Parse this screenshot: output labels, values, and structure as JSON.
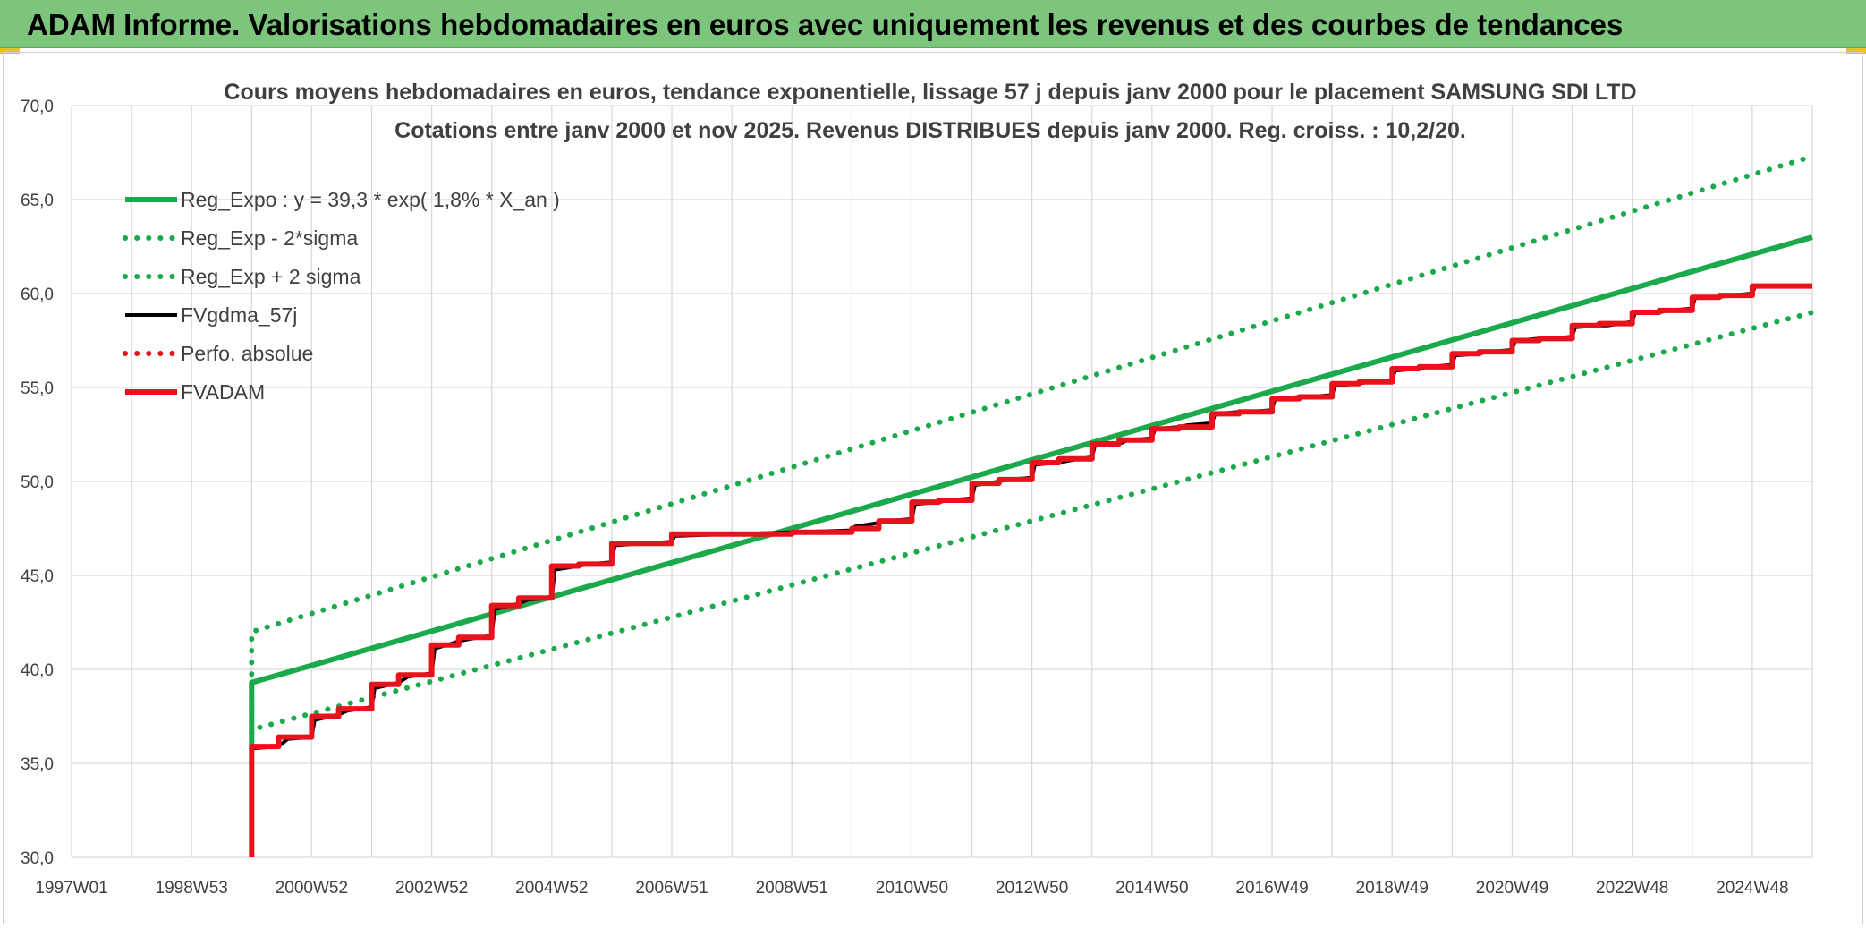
{
  "banner": {
    "title": "ADAM Informe. Valorisations hebdomadaires en euros avec uniquement les revenus et des courbes de tendances"
  },
  "colors": {
    "banner_bg": "#7dc57c",
    "reg_green": "#1aaa4c",
    "fv_black": "#000000",
    "fvadam_red": "#e8121c",
    "grid": "#d9d9d9",
    "text": "#404040"
  },
  "chart_data": {
    "type": "line",
    "title": "Cours moyens hebdomadaires en euros, tendance exponentielle, lissage 57 j depuis janv 2000 pour le placement SAMSUNG SDI LTD",
    "subtitle": "Cotations entre janv 2000 et nov 2025. Revenus DISTRIBUES depuis janv 2000. Reg. croiss. : 10,2/20.",
    "xlabel": "",
    "ylabel": "",
    "x_range": [
      1997.0,
      2026.0
    ],
    "ylim": [
      30,
      70
    ],
    "y_ticks": [
      "30,0",
      "35,0",
      "40,0",
      "45,0",
      "50,0",
      "55,0",
      "60,0",
      "65,0",
      "70,0"
    ],
    "x_ticks": [
      {
        "label": "1997W01",
        "x": 1997.0
      },
      {
        "label": "1998W53",
        "x": 1999.0
      },
      {
        "label": "2000W52",
        "x": 2001.0
      },
      {
        "label": "2002W52",
        "x": 2003.0
      },
      {
        "label": "2004W52",
        "x": 2005.0
      },
      {
        "label": "2006W51",
        "x": 2007.0
      },
      {
        "label": "2008W51",
        "x": 2009.0
      },
      {
        "label": "2010W50",
        "x": 2011.0
      },
      {
        "label": "2012W50",
        "x": 2013.0
      },
      {
        "label": "2014W50",
        "x": 2015.0
      },
      {
        "label": "2016W49",
        "x": 2017.0
      },
      {
        "label": "2018W49",
        "x": 2019.0
      },
      {
        "label": "2020W49",
        "x": 2021.0
      },
      {
        "label": "2022W48",
        "x": 2023.0
      },
      {
        "label": "2024W48",
        "x": 2025.0
      }
    ],
    "grid": true,
    "legend_position": "top-left",
    "series": [
      {
        "name": "Reg_Expo : y = 39,3 * exp( 1,8% *  X_an )",
        "style": "solid",
        "color": "#1aaa4c",
        "x": [
          2000.0,
          2000.0,
          2026.0
        ],
        "y": [
          36.0,
          39.3,
          63.0
        ]
      },
      {
        "name": "Reg_Exp - 2*sigma",
        "style": "dotted",
        "color": "#1aaa4c",
        "x": [
          2000.0,
          2000.0,
          2026.0
        ],
        "y": [
          36.0,
          36.8,
          59.0
        ]
      },
      {
        "name": "Reg_Exp + 2 sigma",
        "style": "dotted",
        "color": "#1aaa4c",
        "x": [
          2000.0,
          2000.0,
          2026.0
        ],
        "y": [
          36.0,
          42.0,
          67.3
        ]
      },
      {
        "name": "FVgdma_57j",
        "style": "solid-thin",
        "color": "#000000",
        "x": [
          2000.0,
          2000.0,
          2000.45,
          2000.6,
          2001.0,
          2001.05,
          2001.45,
          2001.6,
          2002.0,
          2002.05,
          2002.45,
          2002.6,
          2003.0,
          2003.05,
          2003.45,
          2003.6,
          2004.0,
          2004.05,
          2004.45,
          2004.6,
          2005.0,
          2005.05,
          2005.45,
          2005.6,
          2006.0,
          2006.05,
          2007.0,
          2007.05,
          2008.0,
          2008.05,
          2009.0,
          2009.05,
          2010.0,
          2010.05,
          2010.45,
          2010.6,
          2011.0,
          2011.05,
          2011.45,
          2011.6,
          2012.0,
          2012.05,
          2012.45,
          2012.6,
          2013.0,
          2013.05,
          2013.45,
          2013.6,
          2014.0,
          2014.05,
          2014.45,
          2014.6,
          2015.0,
          2015.05,
          2015.45,
          2015.6,
          2016.0,
          2016.05,
          2016.45,
          2016.6,
          2017.0,
          2017.05,
          2017.45,
          2017.6,
          2018.0,
          2018.05,
          2018.45,
          2018.6,
          2019.0,
          2019.05,
          2019.45,
          2019.6,
          2020.0,
          2020.05,
          2020.45,
          2020.6,
          2021.0,
          2021.05,
          2021.45,
          2021.6,
          2022.0,
          2022.05,
          2022.45,
          2022.6,
          2023.0,
          2023.05,
          2023.45,
          2023.6,
          2024.0,
          2024.05,
          2024.45,
          2024.6,
          2025.0,
          2025.05,
          2026.0
        ],
        "y": [
          30.0,
          35.8,
          35.9,
          36.3,
          36.4,
          37.3,
          37.6,
          37.8,
          38.0,
          39.0,
          39.3,
          39.6,
          39.8,
          41.1,
          41.5,
          41.6,
          41.8,
          43.2,
          43.5,
          43.7,
          43.8,
          45.3,
          45.5,
          45.6,
          45.7,
          46.6,
          46.8,
          47.1,
          47.2,
          47.2,
          47.3,
          47.3,
          47.4,
          47.6,
          47.8,
          47.9,
          48.0,
          48.8,
          48.9,
          49.0,
          49.1,
          49.8,
          50.0,
          50.1,
          50.2,
          50.9,
          51.0,
          51.1,
          51.3,
          51.9,
          52.0,
          52.2,
          52.3,
          52.8,
          52.9,
          53.0,
          53.1,
          53.6,
          53.7,
          53.7,
          53.8,
          54.4,
          54.5,
          54.5,
          54.6,
          55.1,
          55.2,
          55.3,
          55.4,
          55.9,
          56.0,
          56.1,
          56.2,
          56.7,
          56.8,
          56.9,
          57.0,
          57.5,
          57.6,
          57.6,
          57.7,
          58.2,
          58.3,
          58.3,
          58.5,
          59.0,
          59.0,
          59.1,
          59.2,
          59.8,
          59.8,
          59.9,
          60.0,
          60.4,
          60.4
        ]
      },
      {
        "name": "Perfo. absolue",
        "style": "dotted",
        "color": "#e8121c",
        "x": [],
        "y": []
      },
      {
        "name": "FVADAM",
        "style": "solid-thick",
        "color": "#e8121c",
        "x": [
          2000.0,
          2000.0,
          2000.45,
          2000.45,
          2001.0,
          2001.0,
          2001.45,
          2001.45,
          2002.0,
          2002.0,
          2002.45,
          2002.45,
          2003.0,
          2003.0,
          2003.45,
          2003.45,
          2004.0,
          2004.0,
          2004.45,
          2004.45,
          2005.0,
          2005.0,
          2005.45,
          2005.45,
          2006.0,
          2006.0,
          2007.0,
          2007.0,
          2009.0,
          2009.0,
          2010.0,
          2010.0,
          2010.45,
          2010.45,
          2011.0,
          2011.0,
          2011.45,
          2011.45,
          2012.0,
          2012.0,
          2012.45,
          2012.45,
          2013.0,
          2013.0,
          2013.45,
          2013.45,
          2014.0,
          2014.0,
          2014.45,
          2014.45,
          2015.0,
          2015.0,
          2015.45,
          2015.45,
          2016.0,
          2016.0,
          2016.45,
          2016.45,
          2017.0,
          2017.0,
          2017.45,
          2017.45,
          2018.0,
          2018.0,
          2018.45,
          2018.45,
          2019.0,
          2019.0,
          2019.45,
          2019.45,
          2020.0,
          2020.0,
          2020.45,
          2020.45,
          2021.0,
          2021.0,
          2021.45,
          2021.45,
          2022.0,
          2022.0,
          2022.45,
          2022.45,
          2023.0,
          2023.0,
          2023.45,
          2023.45,
          2024.0,
          2024.0,
          2024.45,
          2024.45,
          2025.0,
          2025.0,
          2026.0
        ],
        "y": [
          30.0,
          35.9,
          35.9,
          36.4,
          36.4,
          37.5,
          37.5,
          37.9,
          37.9,
          39.2,
          39.2,
          39.7,
          39.7,
          41.3,
          41.3,
          41.7,
          41.7,
          43.4,
          43.4,
          43.8,
          43.8,
          45.5,
          45.5,
          45.6,
          45.6,
          46.7,
          46.7,
          47.2,
          47.2,
          47.3,
          47.3,
          47.5,
          47.5,
          47.9,
          47.9,
          48.9,
          48.9,
          49.0,
          49.0,
          49.9,
          49.9,
          50.1,
          50.1,
          51.0,
          51.0,
          51.2,
          51.2,
          52.0,
          52.0,
          52.2,
          52.2,
          52.8,
          52.8,
          52.9,
          52.9,
          53.6,
          53.6,
          53.7,
          53.7,
          54.4,
          54.4,
          54.5,
          54.5,
          55.2,
          55.2,
          55.3,
          55.3,
          56.0,
          56.0,
          56.1,
          56.1,
          56.8,
          56.8,
          56.9,
          56.9,
          57.5,
          57.5,
          57.6,
          57.6,
          58.3,
          58.3,
          58.4,
          58.4,
          59.0,
          59.0,
          59.1,
          59.1,
          59.8,
          59.8,
          59.9,
          59.9,
          60.4,
          60.4
        ]
      }
    ]
  }
}
